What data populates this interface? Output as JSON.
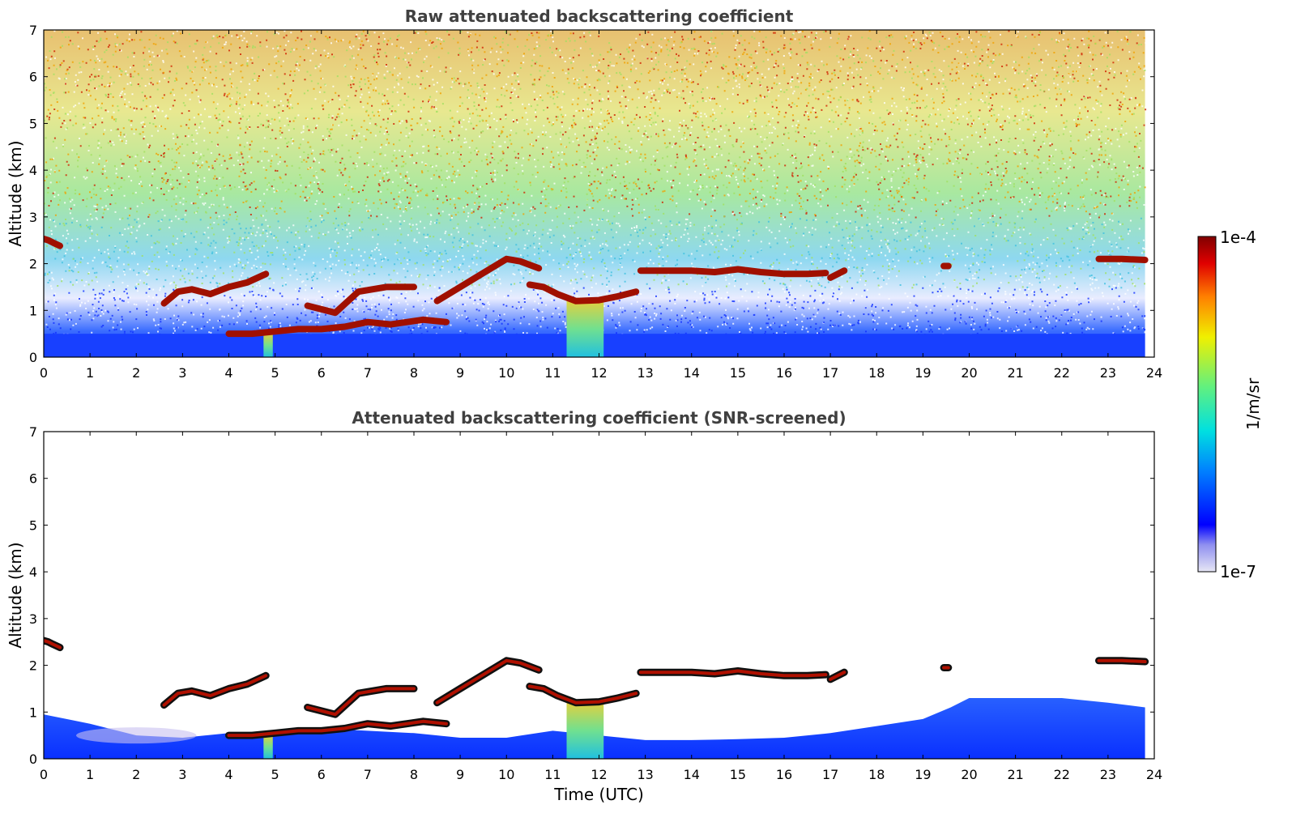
{
  "chart_data": [
    {
      "type": "heatmap",
      "title": "Raw attenuated backscattering coefficient",
      "xlabel": "",
      "ylabel": "Altitude (km)",
      "xlim": [
        0,
        24
      ],
      "ylim": [
        0,
        7
      ],
      "xticks": [
        "0",
        "1",
        "2",
        "3",
        "4",
        "5",
        "6",
        "7",
        "8",
        "9",
        "10",
        "11",
        "12",
        "13",
        "14",
        "15",
        "16",
        "17",
        "18",
        "19",
        "20",
        "21",
        "22",
        "23",
        "24"
      ],
      "yticks": [
        "0",
        "1",
        "2",
        "3",
        "4",
        "5",
        "6",
        "7"
      ],
      "screened": false,
      "cloud_layers": [
        {
          "x": [
            0.0,
            0.1,
            0.2,
            0.35
          ],
          "y": [
            2.53,
            2.5,
            2.45,
            2.38
          ]
        },
        {
          "x": [
            2.6,
            2.9,
            3.2,
            3.6,
            4.0,
            4.4,
            4.8
          ],
          "y": [
            1.15,
            1.4,
            1.45,
            1.35,
            1.5,
            1.6,
            1.78
          ]
        },
        {
          "x": [
            4.0,
            4.5,
            5.0,
            5.5,
            6.0,
            6.5,
            7.0,
            7.5,
            8.2,
            8.7
          ],
          "y": [
            0.5,
            0.5,
            0.55,
            0.6,
            0.6,
            0.65,
            0.75,
            0.7,
            0.8,
            0.75
          ]
        },
        {
          "x": [
            5.7,
            6.3,
            6.8,
            7.4,
            8.0
          ],
          "y": [
            1.1,
            0.95,
            1.4,
            1.5,
            1.5
          ]
        },
        {
          "x": [
            8.5,
            9.0,
            9.5,
            10.0,
            10.3,
            10.7
          ],
          "y": [
            1.2,
            1.5,
            1.8,
            2.1,
            2.05,
            1.9
          ]
        },
        {
          "x": [
            10.5,
            10.8,
            11.1,
            11.5,
            12.0,
            12.4,
            12.8
          ],
          "y": [
            1.55,
            1.5,
            1.35,
            1.2,
            1.22,
            1.3,
            1.4
          ]
        },
        {
          "x": [
            12.9,
            13.5,
            14.0,
            14.5,
            15.0,
            15.5,
            16.0,
            16.5,
            16.9
          ],
          "y": [
            1.85,
            1.85,
            1.85,
            1.82,
            1.88,
            1.82,
            1.78,
            1.78,
            1.8
          ]
        },
        {
          "x": [
            17.0,
            17.3
          ],
          "y": [
            1.7,
            1.85
          ]
        },
        {
          "x": [
            19.45,
            19.55
          ],
          "y": [
            1.95,
            1.95
          ]
        },
        {
          "x": [
            22.8,
            23.3,
            23.8
          ],
          "y": [
            2.1,
            2.1,
            2.08
          ]
        }
      ],
      "columns": [
        {
          "x": [
            4.75,
            4.95
          ],
          "top": 0.5
        },
        {
          "x": [
            11.3,
            12.1
          ],
          "top": 1.2
        }
      ],
      "data_end_x": 23.8
    },
    {
      "type": "heatmap",
      "title": "Attenuated backscattering coefficient (SNR-screened)",
      "xlabel": "Time (UTC)",
      "ylabel": "Altitude (km)",
      "xlim": [
        0,
        24
      ],
      "ylim": [
        0,
        7
      ],
      "xticks": [
        "0",
        "1",
        "2",
        "3",
        "4",
        "5",
        "6",
        "7",
        "8",
        "9",
        "10",
        "11",
        "12",
        "13",
        "14",
        "15",
        "16",
        "17",
        "18",
        "19",
        "20",
        "21",
        "22",
        "23",
        "24"
      ],
      "yticks": [
        "0",
        "1",
        "2",
        "3",
        "4",
        "5",
        "6",
        "7"
      ],
      "screened": true,
      "boundary_layer_top": {
        "x": [
          0,
          1,
          2,
          3,
          4,
          5,
          6,
          7,
          8,
          9,
          10,
          11,
          12,
          13,
          14,
          15,
          16,
          17,
          18,
          19,
          19.6,
          20,
          21,
          22,
          23,
          23.8
        ],
        "y": [
          0.95,
          0.75,
          0.5,
          0.45,
          0.55,
          0.6,
          0.65,
          0.6,
          0.55,
          0.45,
          0.45,
          0.6,
          0.5,
          0.4,
          0.4,
          0.42,
          0.45,
          0.55,
          0.7,
          0.85,
          1.1,
          1.3,
          1.3,
          1.3,
          1.2,
          1.1
        ]
      },
      "cloud_layers": [
        {
          "x": [
            0.0,
            0.1,
            0.2,
            0.35
          ],
          "y": [
            2.53,
            2.5,
            2.45,
            2.38
          ]
        },
        {
          "x": [
            2.6,
            2.9,
            3.2,
            3.6,
            4.0,
            4.4,
            4.8
          ],
          "y": [
            1.15,
            1.4,
            1.45,
            1.35,
            1.5,
            1.6,
            1.78
          ]
        },
        {
          "x": [
            4.0,
            4.5,
            5.0,
            5.5,
            6.0,
            6.5,
            7.0,
            7.5,
            8.2,
            8.7
          ],
          "y": [
            0.5,
            0.5,
            0.55,
            0.6,
            0.6,
            0.65,
            0.75,
            0.7,
            0.8,
            0.75
          ]
        },
        {
          "x": [
            5.7,
            6.3,
            6.8,
            7.4,
            8.0
          ],
          "y": [
            1.1,
            0.95,
            1.4,
            1.5,
            1.5
          ]
        },
        {
          "x": [
            8.5,
            9.0,
            9.5,
            10.0,
            10.3,
            10.7
          ],
          "y": [
            1.2,
            1.5,
            1.8,
            2.1,
            2.05,
            1.9
          ]
        },
        {
          "x": [
            10.5,
            10.8,
            11.1,
            11.5,
            12.0,
            12.4,
            12.8
          ],
          "y": [
            1.55,
            1.5,
            1.35,
            1.2,
            1.22,
            1.3,
            1.4
          ]
        },
        {
          "x": [
            12.9,
            13.5,
            14.0,
            14.5,
            15.0,
            15.5,
            16.0,
            16.5,
            16.9
          ],
          "y": [
            1.85,
            1.85,
            1.85,
            1.82,
            1.88,
            1.82,
            1.78,
            1.78,
            1.8
          ]
        },
        {
          "x": [
            17.0,
            17.3
          ],
          "y": [
            1.7,
            1.85
          ]
        },
        {
          "x": [
            19.45,
            19.55
          ],
          "y": [
            1.95,
            1.95
          ]
        },
        {
          "x": [
            22.8,
            23.3,
            23.8
          ],
          "y": [
            2.1,
            2.1,
            2.08
          ]
        }
      ],
      "columns": [
        {
          "x": [
            4.75,
            4.95
          ],
          "top": 0.5
        },
        {
          "x": [
            11.3,
            12.1
          ],
          "top": 1.2
        }
      ],
      "data_end_x": 23.8
    }
  ],
  "colorbar": {
    "max_label": "1e-4",
    "min_label": "1e-7",
    "label": "1/m/sr",
    "scale": "log",
    "colormap": "jet",
    "colors": [
      "#e6e6f5",
      "#b4b4ee",
      "#8080f0",
      "#0000ff",
      "#0050ff",
      "#00a0ff",
      "#00e0e0",
      "#40f0a0",
      "#a0f050",
      "#f0f000",
      "#ffa000",
      "#ff4000",
      "#d00000",
      "#800000"
    ]
  }
}
